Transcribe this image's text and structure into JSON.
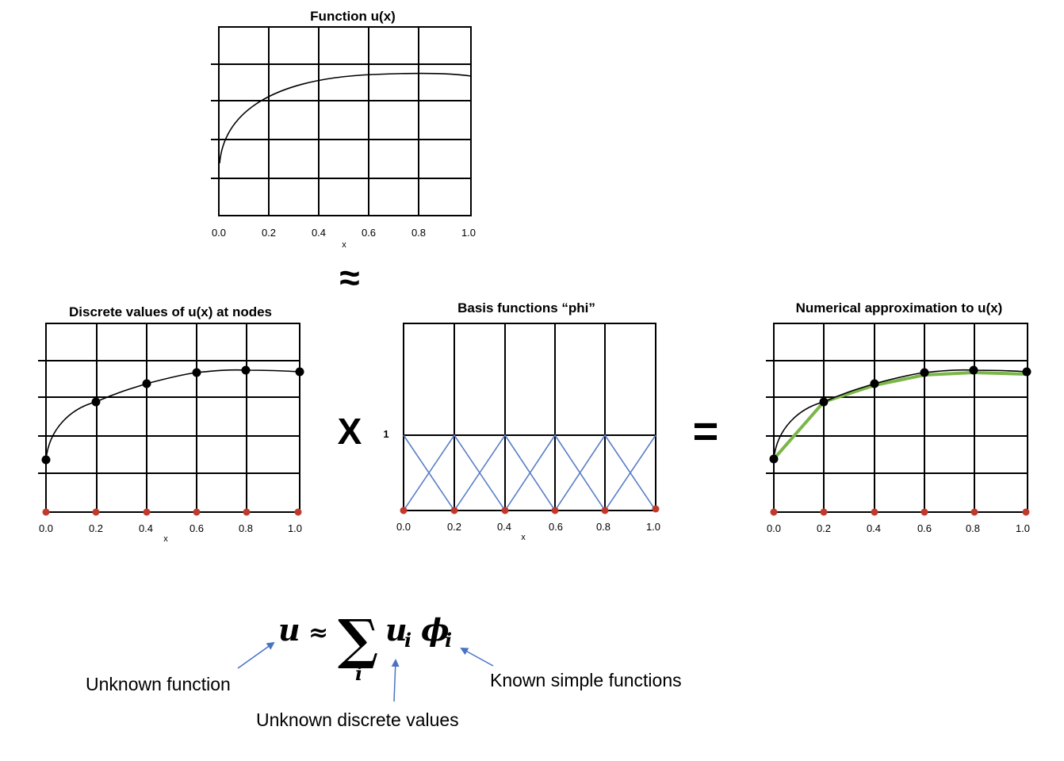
{
  "panels": {
    "top": {
      "title": "Function u(x)",
      "x_label": "x",
      "ticks": [
        "0.0",
        "0.2",
        "0.4",
        "0.6",
        "0.8",
        "1.0"
      ]
    },
    "left": {
      "title": "Discrete values of u(x) at nodes",
      "x_label": "x",
      "ticks": [
        "0.0",
        "0.2",
        "0.4",
        "0.6",
        "0.8",
        "1.0"
      ]
    },
    "middle": {
      "title": "Basis functions “phi”",
      "x_label": "x",
      "y_tick": "1",
      "ticks": [
        "0.0",
        "0.2",
        "0.4",
        "0.6",
        "0.8",
        "1.0"
      ]
    },
    "right": {
      "title": "Numerical approximation to u(x)",
      "ticks": [
        "0.0",
        "0.2",
        "0.4",
        "0.6",
        "0.8",
        "1.0"
      ]
    }
  },
  "operators": {
    "approx": "≈",
    "times": "X",
    "equals": "="
  },
  "formula": {
    "u": "u",
    "approx": "≈",
    "sum": "∑",
    "index": "i",
    "ui": "u",
    "ui_sub": "i",
    "phi": "ϕ",
    "phi_sub": "i"
  },
  "annotations": {
    "unknown_function": "Unknown function",
    "unknown_discrete": "Unknown discrete values",
    "known_simple": "Known simple functions"
  },
  "colors": {
    "node": "#c0392b",
    "basis": "#5b7fc7",
    "approx": "#7ab648",
    "arrow": "#4a72c4"
  },
  "nodes_x": [
    0,
    0.2,
    0.4,
    0.6,
    0.8,
    1.0
  ]
}
